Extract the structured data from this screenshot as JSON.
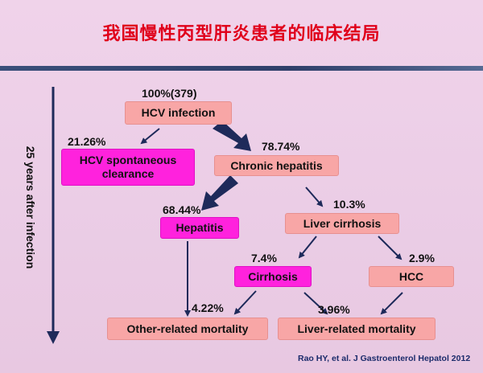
{
  "title": "我国慢性丙型肝炎患者的临床结局",
  "timeline_label": "25 years after infection",
  "nodes": {
    "hcv_infection": {
      "label": "HCV infection",
      "percent": "100%(379)"
    },
    "spontaneous_clearance": {
      "label_line1": "HCV spontaneous",
      "label_line2": "clearance",
      "percent": "21.26%"
    },
    "chronic_hepatitis": {
      "label": "Chronic hepatitis",
      "percent": "78.74%"
    },
    "hepatitis": {
      "label": "Hepatitis",
      "percent": "68.44%"
    },
    "liver_cirrhosis": {
      "label": "Liver cirrhosis",
      "percent": "10.3%"
    },
    "cirrhosis": {
      "label": "Cirrhosis",
      "percent": "7.4%"
    },
    "hcc": {
      "label": "HCC",
      "percent": "2.9%"
    },
    "other_mortality": {
      "label": "Other-related mortality",
      "percent": "4.22%"
    },
    "liver_mortality": {
      "label": "Liver-related mortality",
      "percent": "3.96%"
    }
  },
  "colors": {
    "title": "#e0001b",
    "box_salmon": "#f8a6a6",
    "box_magenta": "#ff22dd",
    "arrow": "#1e2a5a",
    "citation": "#1b2b6b"
  },
  "citation": "Rao HY, et al. J Gastroenterol Hepatol 2012"
}
